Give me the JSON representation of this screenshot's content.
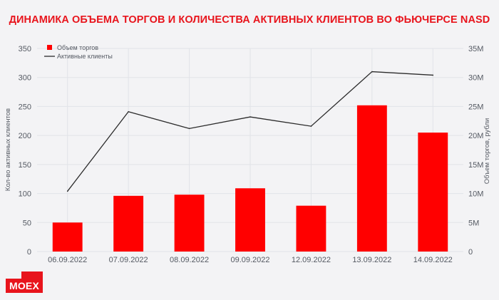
{
  "chart_data": {
    "type": "bar",
    "title": "ДИНАМИКА ОБЪЕМА ТОРГОВ И КОЛИЧЕСТВА АКТИВНЫХ КЛИЕНТОВ ВО ФЬЮЧЕРСЕ NASD",
    "categories": [
      "06.09.2022",
      "07.09.2022",
      "08.09.2022",
      "09.09.2022",
      "12.09.2022",
      "13.09.2022",
      "14.09.2022"
    ],
    "series": [
      {
        "name": "Объем торгов",
        "type": "bar",
        "axis": "right",
        "values": [
          5000000,
          9600000,
          9800000,
          10900000,
          7900000,
          25200000,
          20500000
        ],
        "color": "#ff0000"
      },
      {
        "name": "Активные клиенты",
        "type": "line",
        "axis": "left",
        "values": [
          104,
          241,
          212,
          232,
          216,
          310,
          304
        ],
        "color": "#2b2b2b"
      }
    ],
    "ylabel_left": "Кол-во активных клиентов",
    "ylabel_right": "Объем торгов, рубли",
    "ylim_left": [
      0,
      350
    ],
    "ylim_right": [
      0,
      35000000
    ],
    "yticks_left": [
      "0",
      "50",
      "100",
      "150",
      "200",
      "250",
      "300",
      "350"
    ],
    "yticks_right": [
      "0",
      "5M",
      "10M",
      "15M",
      "20M",
      "25M",
      "30M",
      "35M"
    ],
    "grid": true,
    "legend": "top-left"
  },
  "logo_text": "MOEX",
  "colors": {
    "accent": "#e8141c",
    "background": "#f3f3f5"
  }
}
